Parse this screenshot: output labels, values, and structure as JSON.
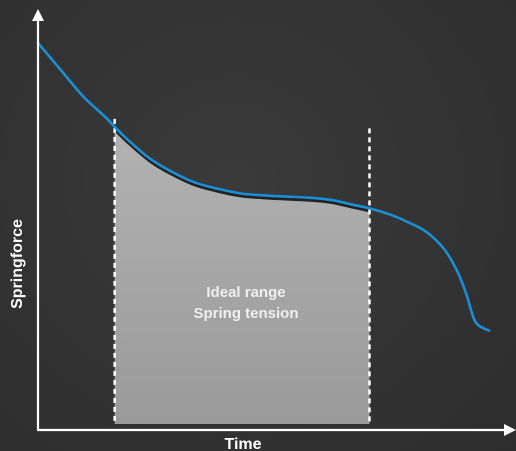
{
  "chart_data": {
    "type": "line",
    "xlabel": "Time",
    "ylabel": "Springforce",
    "xlim": [
      0,
      100
    ],
    "ylim": [
      0,
      100
    ],
    "grid": false,
    "legend": "none",
    "series": [
      {
        "color": "#1a8fd6",
        "x": [
          0,
          5,
          10,
          15,
          17,
          20,
          25,
          30,
          35,
          40,
          45,
          50,
          55,
          60,
          65,
          70,
          73.5,
          78,
          82,
          86,
          90,
          93,
          95,
          97,
          100
        ],
        "y": [
          100,
          93,
          86,
          80.5,
          78,
          74.5,
          69.5,
          66,
          63.3,
          61.7,
          60.5,
          60.0,
          59.7,
          59.4,
          58.8,
          57.5,
          56.6,
          55,
          53,
          50.5,
          46,
          40,
          34,
          26.8,
          24.5
        ]
      }
    ],
    "annotations": [
      {
        "type": "band",
        "x_range": [
          17,
          73.5
        ],
        "fill": "#a3a3a3",
        "lines": [
          "Ideal range",
          "Spring tension"
        ]
      }
    ]
  },
  "colors": {
    "background": "#333333",
    "axis": "#ffffff",
    "curve": "#1a8fd6",
    "band": "#a3a3a3",
    "band_edge": "#222222"
  }
}
